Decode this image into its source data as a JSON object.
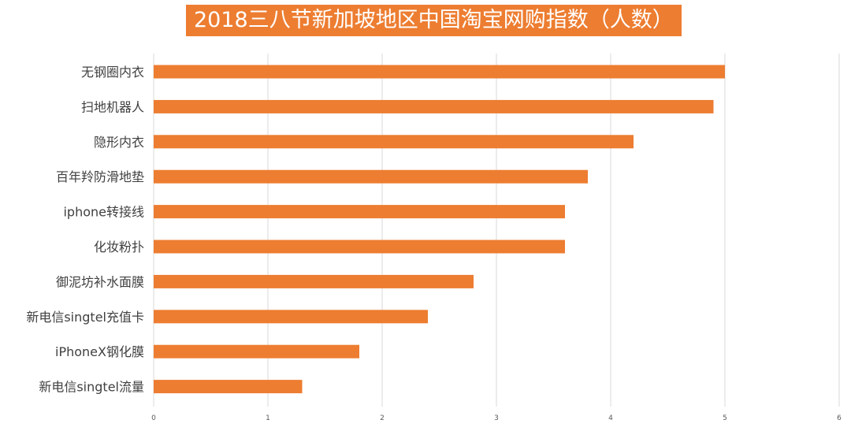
{
  "chart_data": {
    "type": "bar",
    "orientation": "horizontal",
    "title": "2018三八节新加坡地区中国淘宝网购指数（人数）",
    "categories": [
      "无钢圈内衣",
      "扫地机器人",
      "隐形内衣",
      "百年羚防滑地垫",
      "iphone转接线",
      "化妆粉扑",
      "御泥坊补水面膜",
      "新电信singtel充值卡",
      "iPhoneX钢化膜",
      "新电信singtel流量"
    ],
    "values": [
      5.0,
      4.9,
      4.2,
      3.8,
      3.6,
      3.6,
      2.8,
      2.4,
      1.8,
      1.3
    ],
    "xlim": [
      0,
      6
    ],
    "xticks": [
      "0",
      "1",
      "2",
      "3",
      "4",
      "5",
      "6"
    ],
    "grid": true,
    "legend": "none",
    "bar_color": "#ED7D31",
    "grid_color": "#D9D9D9"
  }
}
